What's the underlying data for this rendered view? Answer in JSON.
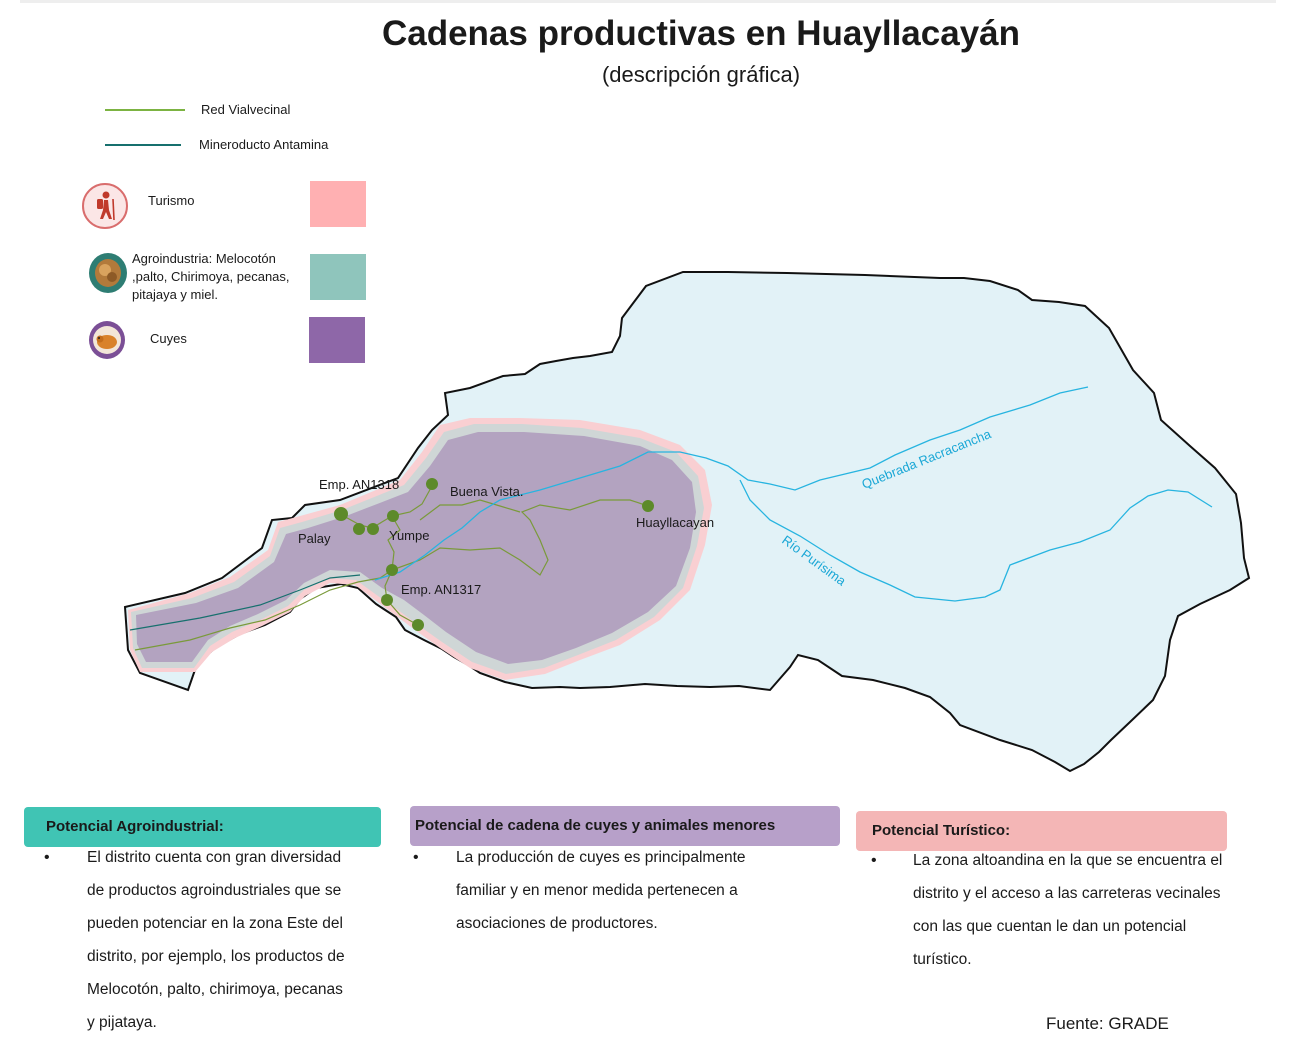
{
  "title": "Cadenas productivas en Huayllacayán",
  "subtitle": "(descripción gráfica)",
  "legend": {
    "lines": [
      {
        "label": "Red Vialvecinal",
        "color": "#7cb342"
      },
      {
        "label": "Mineroducto Antamina",
        "color": "#17706e"
      }
    ],
    "categories": [
      {
        "label": "Turismo",
        "color": "#ffb0b2",
        "icon": "hiker-icon"
      },
      {
        "label": "Agroindustria: Melocotón ,palto, Chirimoya, pecanas, pitajaya y miel.",
        "color": "#8fc5bc",
        "icon": "melocoton-icon"
      },
      {
        "label": "Cuyes",
        "color": "#8e67a8",
        "icon": "cuy-icon"
      }
    ]
  },
  "map": {
    "places": [
      "Emp. AN1318",
      "Buena Vista.",
      "Palay",
      "Yumpe",
      "Huayllacayan",
      "Emp. AN1317"
    ],
    "rivers": [
      "Quebrada Racracancha",
      "Río Purísima"
    ]
  },
  "boxes": [
    {
      "header": "Potencial Agroindustrial:",
      "color": "#40c4b4",
      "lines": [
        "El distrito cuenta con gran diversidad",
        "de productos agroindustriales que se",
        "pueden potenciar en la zona Este del",
        "distrito, por ejemplo, los productos de",
        "Melocotón, palto, chirimoya, pecanas",
        "y pijataya."
      ]
    },
    {
      "header": "Potencial de cadena de cuyes y animales menores",
      "color": "#b7a0c9",
      "lines": [
        "La producción de cuyes es principalmente",
        "familiar y en menor medida pertenecen a",
        "asociaciones de productores."
      ]
    },
    {
      "header": "Potencial Turístico:",
      "color": "#f4b6b6",
      "lines": [
        "La zona altoandina en la que se encuentra el",
        "distrito y el acceso a las carreteras  vecinales",
        "con las que cuentan le dan un  potencial",
        "turístico."
      ]
    }
  ],
  "source": "Fuente: GRADE"
}
